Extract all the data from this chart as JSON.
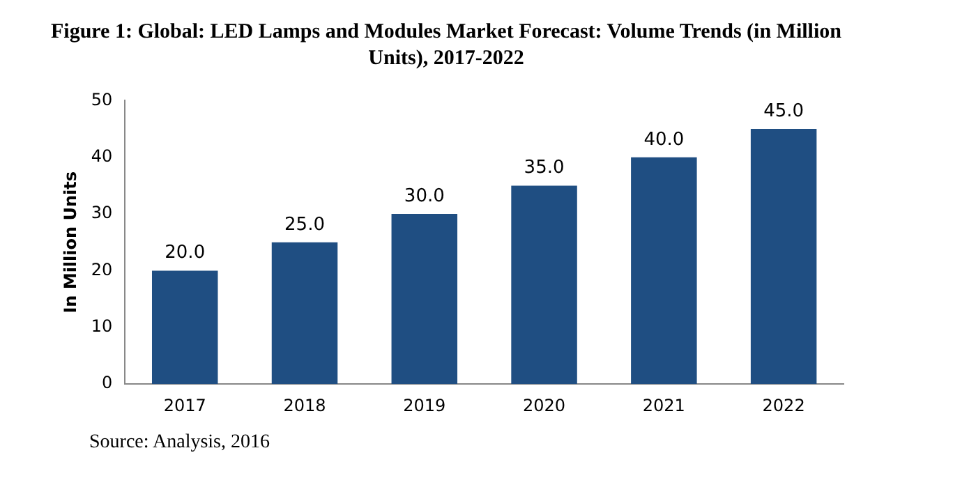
{
  "chart_data": {
    "type": "bar",
    "title": "Figure 1: Global: LED Lamps and Modules Market Forecast: Volume Trends (in Million Units), 2017-2022",
    "ylabel": "In Million Units",
    "categories": [
      "2017",
      "2018",
      "2019",
      "2020",
      "2021",
      "2022"
    ],
    "values": [
      20,
      25,
      30,
      35,
      40,
      45
    ],
    "color": "#1f4e82",
    "value_labels": [
      "20.0",
      "25.0",
      "30.0",
      "35.0",
      "40.0",
      "45.0"
    ],
    "ylim": [
      0,
      50
    ],
    "yticks": [
      0,
      10,
      20,
      30,
      40,
      50
    ],
    "grid": false,
    "legend": false,
    "annotations": [
      "Source: Analysis, 2016"
    ]
  }
}
